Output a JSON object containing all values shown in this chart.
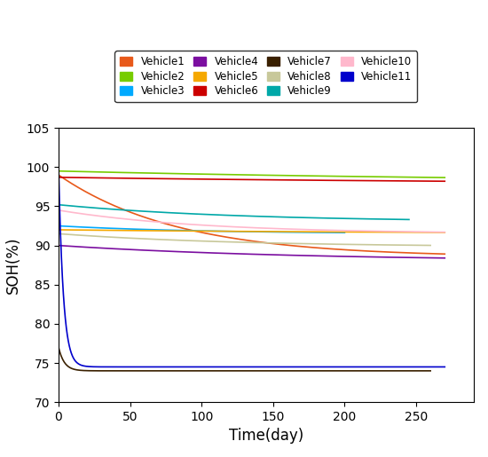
{
  "xlabel": "Time(day)",
  "ylabel": "SOH(%)",
  "xlim": [
    0,
    290
  ],
  "ylim": [
    70,
    105
  ],
  "yticks": [
    70,
    75,
    80,
    85,
    90,
    95,
    100,
    105
  ],
  "xticks": [
    0,
    50,
    100,
    150,
    200,
    250
  ],
  "vehicles": [
    {
      "name": "Vehicle1",
      "color": "#E8591A",
      "start": 99.0,
      "end": 88.5,
      "x_end": 270,
      "k": 0.012
    },
    {
      "name": "Vehicle2",
      "color": "#77CC00",
      "start": 99.5,
      "end": 98.0,
      "x_end": 270,
      "k": 0.003
    },
    {
      "name": "Vehicle3",
      "color": "#00AAFF",
      "start": 92.5,
      "end": 91.5,
      "x_end": 200,
      "k": 0.01
    },
    {
      "name": "Vehicle4",
      "color": "#7B0EA0",
      "start": 90.0,
      "end": 88.0,
      "x_end": 270,
      "k": 0.006
    },
    {
      "name": "Vehicle5",
      "color": "#F5A800",
      "start": 92.0,
      "end": 91.5,
      "x_end": 270,
      "k": 0.004
    },
    {
      "name": "Vehicle6",
      "color": "#CC0000",
      "start": 98.7,
      "end": 97.8,
      "x_end": 270,
      "k": 0.003
    },
    {
      "name": "Vehicle7",
      "color": "#3A2000",
      "start": 77.0,
      "end": 74.0,
      "x_end": 260,
      "k": 0.25
    },
    {
      "name": "Vehicle8",
      "color": "#C8C89A",
      "start": 91.5,
      "end": 89.8,
      "x_end": 260,
      "k": 0.008
    },
    {
      "name": "Vehicle9",
      "color": "#00A8A8",
      "start": 95.2,
      "end": 93.0,
      "x_end": 245,
      "k": 0.008
    },
    {
      "name": "Vehicle10",
      "color": "#FFB8CC",
      "start": 94.5,
      "end": 91.5,
      "x_end": 270,
      "k": 0.01
    },
    {
      "name": "Vehicle11",
      "color": "#0000CC",
      "start": 100.0,
      "end": 74.5,
      "x_end": 270,
      "k": 0.3
    }
  ],
  "figsize": [
    5.5,
    5.15
  ],
  "dpi": 100,
  "legend_ncol": 4,
  "legend_fontsize": 8.5
}
